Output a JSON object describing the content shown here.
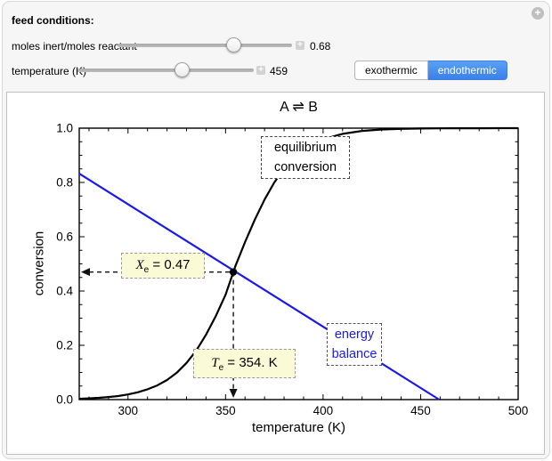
{
  "icons": {
    "plus": "+"
  },
  "controls": {
    "section_label": "feed conditions:",
    "sliders": [
      {
        "label": "moles inert/moles reactant",
        "value": "0.68"
      },
      {
        "label": "temperature (K)",
        "value": "459"
      }
    ],
    "toggle": {
      "options": [
        "exothermic",
        "endothermic"
      ],
      "selected": "endothermic"
    }
  },
  "chart_data": {
    "type": "line",
    "title": "A ⇌ B",
    "xlabel": "temperature (K)",
    "ylabel": "conversion",
    "xlim": [
      275,
      500
    ],
    "ylim": [
      0,
      1
    ],
    "grid": false,
    "x_ticks": {
      "values": [
        300,
        350,
        400,
        450,
        500
      ],
      "labels": [
        "300",
        "350",
        "400",
        "450",
        "500"
      ]
    },
    "y_ticks": {
      "values": [
        0,
        0.2,
        0.4,
        0.6,
        0.8,
        1.0
      ],
      "labels": [
        "0.0",
        "0.2",
        "0.4",
        "0.6",
        "0.8",
        "1.0"
      ]
    },
    "x_minor_step": 10,
    "y_minor_step": 0.05,
    "series": [
      {
        "name": "equilibrium conversion",
        "color": "#000000",
        "points": [
          [
            275,
            0.003
          ],
          [
            280,
            0.0045
          ],
          [
            285,
            0.0065
          ],
          [
            290,
            0.0095
          ],
          [
            295,
            0.013
          ],
          [
            300,
            0.019
          ],
          [
            305,
            0.027
          ],
          [
            310,
            0.038
          ],
          [
            315,
            0.052
          ],
          [
            320,
            0.072
          ],
          [
            325,
            0.099
          ],
          [
            330,
            0.135
          ],
          [
            335,
            0.181
          ],
          [
            340,
            0.239
          ],
          [
            345,
            0.308
          ],
          [
            350,
            0.386
          ],
          [
            354,
            0.47
          ],
          [
            355,
            0.491
          ],
          [
            360,
            0.58
          ],
          [
            365,
            0.663
          ],
          [
            370,
            0.737
          ],
          [
            375,
            0.8
          ],
          [
            380,
            0.851
          ],
          [
            385,
            0.89
          ],
          [
            390,
            0.92
          ],
          [
            395,
            0.943
          ],
          [
            400,
            0.959
          ],
          [
            410,
            0.979
          ],
          [
            420,
            0.99
          ],
          [
            430,
            0.995
          ],
          [
            440,
            0.9975
          ],
          [
            450,
            0.9988
          ],
          [
            460,
            0.9994
          ],
          [
            470,
            0.9997
          ],
          [
            480,
            0.9998
          ],
          [
            490,
            0.9999
          ],
          [
            500,
            0.9999
          ]
        ]
      },
      {
        "name": "energy balance",
        "color": "#1a1aee",
        "points": [
          [
            275,
            0.8325
          ],
          [
            459.5,
            0
          ]
        ]
      }
    ],
    "intersection": {
      "T": 354,
      "X": 0.47
    },
    "annotations": {
      "equilibrium_line1": "equilibrium",
      "equilibrium_line2": "conversion",
      "energy_line1": "energy",
      "energy_line2": "balance",
      "xe": {
        "var": "X",
        "sub": "e",
        "rest": " = 0.47"
      },
      "te": {
        "var": "T",
        "sub": "e",
        "rest": " = 354. K"
      }
    }
  }
}
